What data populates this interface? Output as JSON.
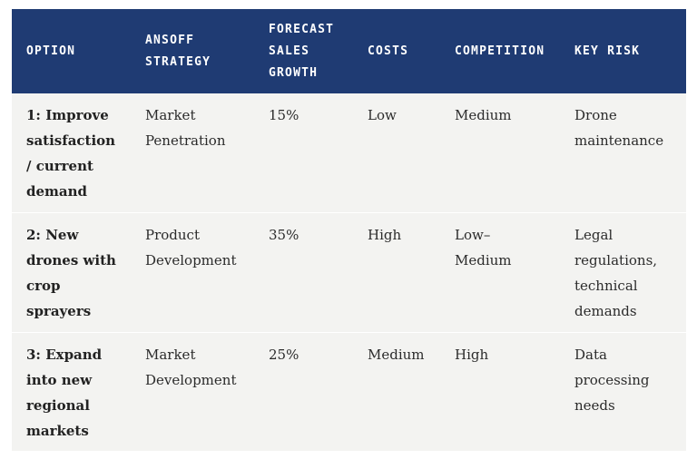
{
  "table": {
    "headers": {
      "option": "OPTION",
      "strategy_line1": "ANSOFF",
      "strategy_line2": "STRATEGY",
      "growth_line1": "FORECAST",
      "growth_line2": "SALES",
      "growth_line3": "GROWTH",
      "costs": "COSTS",
      "competition": "COMPETITION",
      "risk": "KEY RISK"
    },
    "rows": [
      {
        "option": [
          "1: Improve",
          "satisfaction",
          "/ current",
          "demand"
        ],
        "strategy": [
          "Market",
          "Penetration"
        ],
        "growth": "15%",
        "costs": "Low",
        "competition": [
          "Medium"
        ],
        "risk": [
          "Drone",
          "maintenance"
        ]
      },
      {
        "option": [
          "2: New",
          "drones with",
          "crop",
          "sprayers"
        ],
        "strategy": [
          "Product",
          "Development"
        ],
        "growth": "35%",
        "costs": "High",
        "competition": [
          "Low–",
          "Medium"
        ],
        "risk": [
          "Legal",
          "regulations,",
          "technical",
          "demands"
        ]
      },
      {
        "option": [
          "3: Expand",
          "into new",
          "regional",
          "markets"
        ],
        "strategy": [
          "Market",
          "Development"
        ],
        "growth": "25%",
        "costs": "Medium",
        "competition": [
          "High"
        ],
        "risk": [
          "Data",
          "processing",
          "needs"
        ]
      }
    ]
  },
  "colors": {
    "header_bg": "#1f3b73",
    "row_bg": "#f3f3f1",
    "header_text": "#ffffff",
    "body_text": "#2b2b2b"
  }
}
